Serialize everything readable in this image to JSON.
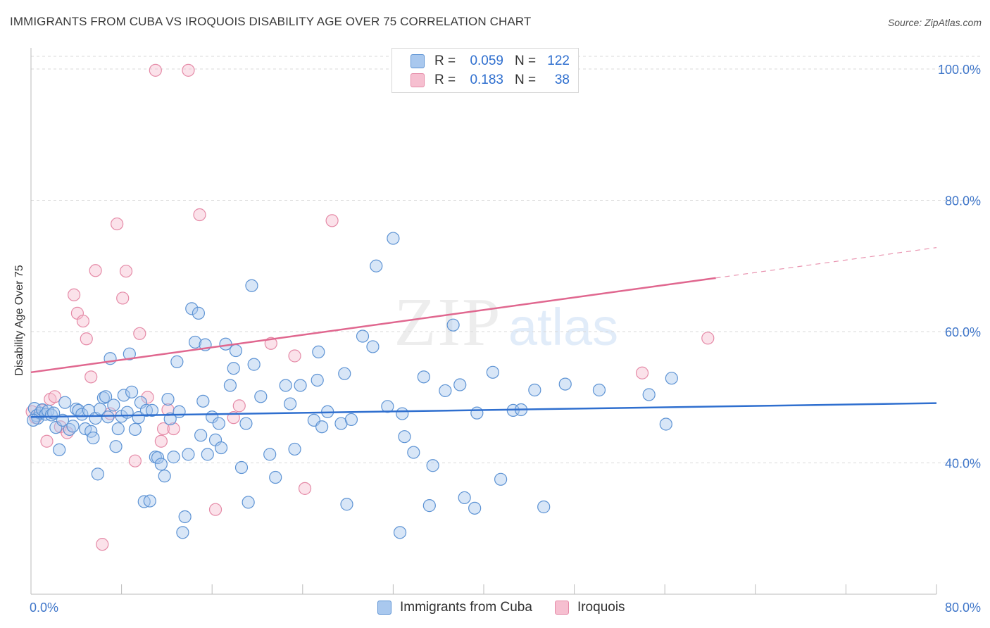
{
  "title": "IMMIGRANTS FROM CUBA VS IROQUOIS DISABILITY AGE OVER 75 CORRELATION CHART",
  "source": "Source: ZipAtlas.com",
  "watermark": {
    "zip": "ZIP",
    "atlas": "atlas"
  },
  "legend": {
    "rows": [
      {
        "r_label": "R =",
        "r_value": "0.059",
        "n_label": "N =",
        "n_value": "122"
      },
      {
        "r_label": "R =",
        "r_value": "0.183",
        "n_label": "N =",
        "n_value": "38"
      }
    ]
  },
  "colors": {
    "blue_fill": "#a9c8ee",
    "blue_stroke": "#5d93d4",
    "blue_line": "#2f6fcf",
    "pink_fill": "#f6bfd0",
    "pink_stroke": "#e58aa7",
    "pink_line": "#e0678f",
    "grid": "#d9d9d9",
    "tick_text": "#3f76c9"
  },
  "chart_data": {
    "type": "scatter",
    "title": "IMMIGRANTS FROM CUBA VS IROQUOIS DISABILITY AGE OVER 75 CORRELATION CHART",
    "xlabel": "",
    "ylabel": "Disability Age Over 75",
    "xlim": [
      0,
      80
    ],
    "ylim": [
      20,
      100
    ],
    "x_tick_labels": [
      "0.0%",
      "80.0%"
    ],
    "y_ticks": [
      40,
      60,
      80,
      100
    ],
    "y_tick_labels": [
      "40.0%",
      "60.0%",
      "80.0%",
      "100.0%"
    ],
    "grid": true,
    "legend_position": "top-center",
    "series": [
      {
        "name": "Immigrants from Cuba",
        "color": "#a9c8ee",
        "trend": {
          "x": [
            0,
            80
          ],
          "y": [
            47.0,
            49.1
          ],
          "dashed_from_x": null
        },
        "points": [
          [
            0.3,
            48.3
          ],
          [
            0.5,
            47.2
          ],
          [
            0.6,
            46.8
          ],
          [
            0.8,
            47.6
          ],
          [
            1.0,
            48.1
          ],
          [
            1.3,
            47.4
          ],
          [
            1.5,
            47.9
          ],
          [
            1.8,
            47.3
          ],
          [
            2.0,
            47.6
          ],
          [
            2.2,
            45.4
          ],
          [
            2.5,
            42.0
          ],
          [
            2.8,
            46.5
          ],
          [
            3.0,
            49.2
          ],
          [
            3.4,
            45.1
          ],
          [
            3.7,
            45.6
          ],
          [
            4.0,
            48.2
          ],
          [
            4.2,
            48.0
          ],
          [
            4.5,
            47.4
          ],
          [
            4.8,
            45.2
          ],
          [
            5.1,
            48.0
          ],
          [
            5.3,
            44.8
          ],
          [
            5.5,
            43.8
          ],
          [
            5.7,
            46.8
          ],
          [
            5.9,
            38.3
          ],
          [
            6.1,
            48.2
          ],
          [
            6.4,
            49.9
          ],
          [
            6.6,
            50.1
          ],
          [
            6.8,
            47.0
          ],
          [
            7.0,
            55.9
          ],
          [
            7.3,
            48.8
          ],
          [
            7.5,
            42.5
          ],
          [
            7.7,
            45.2
          ],
          [
            8.0,
            47.1
          ],
          [
            8.2,
            50.3
          ],
          [
            8.5,
            47.7
          ],
          [
            8.7,
            56.6
          ],
          [
            8.9,
            50.8
          ],
          [
            9.2,
            45.1
          ],
          [
            9.5,
            46.9
          ],
          [
            9.7,
            49.2
          ],
          [
            10.0,
            34.1
          ],
          [
            10.2,
            48.0
          ],
          [
            10.5,
            34.2
          ],
          [
            10.7,
            48.0
          ],
          [
            11.0,
            40.9
          ],
          [
            11.2,
            40.8
          ],
          [
            11.5,
            39.8
          ],
          [
            11.8,
            38.0
          ],
          [
            12.1,
            49.7
          ],
          [
            12.3,
            46.7
          ],
          [
            12.6,
            40.9
          ],
          [
            12.9,
            55.4
          ],
          [
            13.1,
            47.8
          ],
          [
            13.4,
            29.4
          ],
          [
            13.6,
            31.8
          ],
          [
            13.9,
            41.3
          ],
          [
            14.2,
            63.5
          ],
          [
            14.5,
            58.4
          ],
          [
            14.8,
            62.8
          ],
          [
            15.0,
            44.2
          ],
          [
            15.2,
            49.4
          ],
          [
            15.4,
            58.0
          ],
          [
            15.6,
            41.3
          ],
          [
            16.0,
            47.0
          ],
          [
            16.3,
            43.5
          ],
          [
            16.6,
            46.0
          ],
          [
            16.8,
            42.3
          ],
          [
            17.2,
            58.1
          ],
          [
            17.6,
            51.8
          ],
          [
            17.9,
            54.4
          ],
          [
            18.1,
            57.1
          ],
          [
            18.6,
            39.3
          ],
          [
            19.0,
            46.0
          ],
          [
            19.2,
            34.0
          ],
          [
            19.5,
            67.0
          ],
          [
            19.7,
            55.0
          ],
          [
            20.3,
            50.1
          ],
          [
            21.1,
            41.3
          ],
          [
            21.6,
            37.8
          ],
          [
            22.5,
            51.8
          ],
          [
            22.9,
            49.0
          ],
          [
            23.3,
            42.1
          ],
          [
            23.8,
            51.8
          ],
          [
            25.0,
            46.5
          ],
          [
            25.3,
            52.6
          ],
          [
            25.4,
            56.9
          ],
          [
            25.7,
            45.5
          ],
          [
            26.2,
            47.8
          ],
          [
            27.4,
            46.0
          ],
          [
            27.7,
            53.6
          ],
          [
            27.9,
            33.7
          ],
          [
            28.3,
            46.6
          ],
          [
            29.3,
            59.3
          ],
          [
            30.2,
            57.7
          ],
          [
            30.5,
            70.0
          ],
          [
            31.5,
            48.6
          ],
          [
            32.0,
            74.2
          ],
          [
            32.6,
            29.4
          ],
          [
            32.8,
            47.5
          ],
          [
            33.0,
            44.0
          ],
          [
            33.8,
            41.6
          ],
          [
            34.7,
            53.1
          ],
          [
            35.2,
            33.5
          ],
          [
            35.5,
            39.6
          ],
          [
            36.6,
            51.0
          ],
          [
            37.3,
            61.0
          ],
          [
            37.9,
            51.9
          ],
          [
            38.3,
            34.7
          ],
          [
            39.2,
            33.1
          ],
          [
            39.4,
            47.6
          ],
          [
            40.8,
            53.8
          ],
          [
            41.5,
            37.5
          ],
          [
            42.6,
            48.0
          ],
          [
            43.3,
            48.1
          ],
          [
            44.5,
            51.1
          ],
          [
            45.3,
            33.3
          ],
          [
            47.2,
            52.0
          ],
          [
            50.2,
            51.1
          ],
          [
            54.6,
            50.4
          ],
          [
            56.1,
            45.9
          ],
          [
            56.6,
            52.9
          ],
          [
            0.2,
            46.5
          ]
        ]
      },
      {
        "name": "Iroquois",
        "color": "#f6bfd0",
        "trend": {
          "x": [
            0,
            80
          ],
          "y": [
            53.8,
            72.8
          ],
          "dashed_from_x": 60.5
        },
        "points": [
          [
            0.4,
            46.9
          ],
          [
            1.0,
            48.0
          ],
          [
            1.4,
            43.3
          ],
          [
            1.7,
            49.7
          ],
          [
            2.1,
            50.1
          ],
          [
            2.6,
            45.5
          ],
          [
            3.2,
            44.6
          ],
          [
            3.8,
            65.6
          ],
          [
            4.1,
            62.8
          ],
          [
            4.6,
            61.6
          ],
          [
            4.9,
            58.9
          ],
          [
            5.3,
            53.1
          ],
          [
            5.7,
            69.3
          ],
          [
            6.3,
            27.6
          ],
          [
            7.0,
            47.5
          ],
          [
            7.6,
            76.4
          ],
          [
            8.1,
            65.1
          ],
          [
            8.4,
            69.2
          ],
          [
            9.2,
            40.3
          ],
          [
            9.6,
            59.7
          ],
          [
            10.3,
            50.0
          ],
          [
            11.0,
            99.8
          ],
          [
            11.5,
            43.3
          ],
          [
            11.7,
            45.2
          ],
          [
            12.1,
            48.1
          ],
          [
            12.6,
            45.2
          ],
          [
            13.9,
            99.8
          ],
          [
            14.9,
            77.8
          ],
          [
            16.3,
            32.9
          ],
          [
            17.9,
            46.9
          ],
          [
            18.4,
            48.7
          ],
          [
            21.2,
            58.2
          ],
          [
            23.3,
            56.3
          ],
          [
            24.2,
            36.1
          ],
          [
            26.6,
            76.9
          ],
          [
            54.0,
            53.7
          ],
          [
            59.8,
            59.0
          ],
          [
            0.1,
            47.8
          ]
        ]
      }
    ]
  }
}
